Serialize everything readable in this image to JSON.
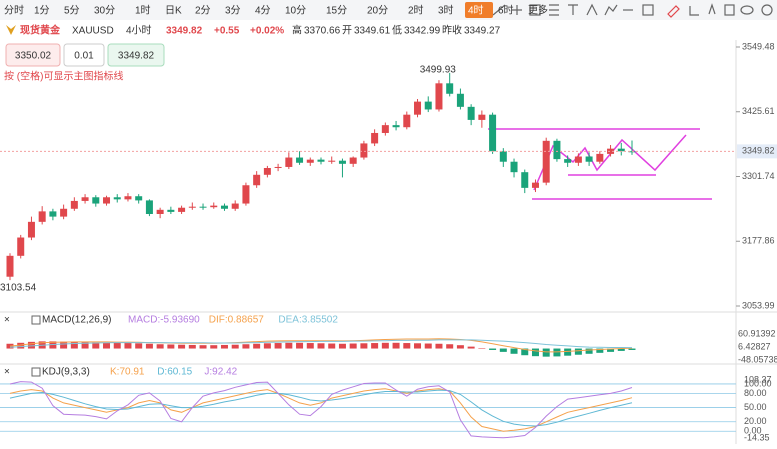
{
  "toolbar": {
    "timeframes": [
      "分时",
      "1分",
      "5分",
      "30分",
      "1时",
      "日K",
      "2分",
      "3分",
      "4分",
      "10分",
      "15分",
      "20分",
      "2时",
      "3时",
      "4时",
      "6时",
      "更多"
    ],
    "active": 14
  },
  "instrument": {
    "name": "现货黄金",
    "symbol": "XAUUSD",
    "interval": "4小时",
    "price": 3349.82,
    "change": "+0.55",
    "change_pct": "+0.02%",
    "stats": [
      {
        "label": "高",
        "value": 3370.66
      },
      {
        "label": "开",
        "value": 3349.61
      },
      {
        "label": "低",
        "value": 3342.99
      },
      {
        "label": "昨收",
        "value": 3349.27
      }
    ]
  },
  "order": {
    "sell": 3350.02,
    "lots": 0.01,
    "buy": 3349.82
  },
  "hint": "按 (空格)可显示主图指标线",
  "chart_data": [
    {
      "type": "candlestick",
      "up_color": "#e0474c",
      "down_color": "#1aa37a",
      "ylim": [
        3053.99,
        3549.48
      ],
      "yticks": [
        3549.48,
        3425.61,
        3301.74,
        3177.86,
        3053.99
      ],
      "candles": {
        "open": [
          3110,
          3150,
          3185,
          3215,
          3235,
          3225,
          3240,
          3255,
          3262,
          3250,
          3262,
          3258,
          3264,
          3256,
          3230,
          3238,
          3234,
          3242,
          3244,
          3243,
          3246,
          3240,
          3250,
          3285,
          3305,
          3318,
          3320,
          3338,
          3328,
          3334,
          3330,
          3332,
          3326,
          3338,
          3365,
          3385,
          3400,
          3396,
          3420,
          3445,
          3430,
          3480,
          3460,
          3435,
          3410,
          3420,
          3350,
          3330,
          3310,
          3280,
          3290,
          3370,
          3335,
          3328,
          3340,
          3330,
          3345,
          3355,
          3350
        ],
        "high": [
          3155,
          3190,
          3225,
          3245,
          3240,
          3248,
          3262,
          3268,
          3266,
          3265,
          3268,
          3270,
          3268,
          3258,
          3242,
          3244,
          3246,
          3252,
          3250,
          3252,
          3250,
          3256,
          3290,
          3312,
          3322,
          3326,
          3348,
          3350,
          3338,
          3338,
          3340,
          3336,
          3340,
          3370,
          3392,
          3405,
          3408,
          3426,
          3450,
          3455,
          3486,
          3499.93,
          3470,
          3440,
          3428,
          3424,
          3356,
          3336,
          3315,
          3296,
          3376,
          3374,
          3342,
          3346,
          3348,
          3350,
          3362,
          3366,
          3370.66
        ],
        "low": [
          3103.54,
          3145,
          3180,
          3210,
          3218,
          3220,
          3236,
          3250,
          3244,
          3246,
          3252,
          3254,
          3250,
          3226,
          3222,
          3230,
          3230,
          3238,
          3238,
          3240,
          3236,
          3236,
          3246,
          3280,
          3300,
          3312,
          3316,
          3324,
          3322,
          3325,
          3326,
          3300,
          3320,
          3334,
          3360,
          3380,
          3390,
          3392,
          3415,
          3425,
          3426,
          3455,
          3430,
          3400,
          3395,
          3345,
          3320,
          3300,
          3270,
          3272,
          3285,
          3330,
          3320,
          3322,
          3322,
          3326,
          3340,
          3342,
          3342.99
        ],
        "close": [
          3150,
          3185,
          3215,
          3235,
          3225,
          3240,
          3255,
          3262,
          3250,
          3262,
          3258,
          3264,
          3256,
          3230,
          3238,
          3234,
          3242,
          3244,
          3243,
          3246,
          3240,
          3250,
          3285,
          3305,
          3318,
          3320,
          3338,
          3328,
          3334,
          3330,
          3332,
          3326,
          3338,
          3365,
          3385,
          3400,
          3396,
          3420,
          3445,
          3430,
          3480,
          3460,
          3435,
          3410,
          3420,
          3350,
          3330,
          3310,
          3280,
          3290,
          3370,
          3335,
          3328,
          3340,
          3330,
          3345,
          3355,
          3350,
          3349.82
        ]
      }
    },
    {
      "type": "macd",
      "label": "MACD(12,26,9)",
      "readouts": [
        "MACD:-5.93690",
        "DIF:0.88657",
        "DEA:3.85502"
      ],
      "ylim": [
        -48.05738,
        60.91392
      ],
      "yticks": [
        60.91392,
        6.42827,
        -48.05738
      ],
      "up_color": "#e0474c",
      "down_color": "#1aa37a",
      "histogram": [
        20,
        24,
        28,
        30,
        30,
        29,
        28,
        27,
        26,
        25,
        24,
        23,
        22,
        20,
        18,
        17,
        16,
        15,
        14,
        14,
        15,
        16,
        18,
        20,
        22,
        23,
        24,
        24,
        23,
        22,
        21,
        20,
        21,
        22,
        23,
        24,
        24,
        23,
        22,
        21,
        20,
        18,
        14,
        8,
        2,
        -6,
        -14,
        -22,
        -28,
        -32,
        -34,
        -33,
        -30,
        -26,
        -22,
        -18,
        -14,
        -10,
        -5.9369
      ],
      "series": [
        {
          "name": "DIF",
          "color": "#f5a14b",
          "values": [
            10,
            15,
            20,
            24,
            26,
            27,
            28,
            28,
            28,
            28,
            27,
            27,
            26,
            25,
            24,
            23,
            22,
            22,
            22,
            22,
            23,
            25,
            27,
            29,
            31,
            32,
            33,
            33,
            33,
            33,
            33,
            32,
            33,
            34,
            36,
            38,
            39,
            40,
            40,
            40,
            41,
            40,
            38,
            34,
            28,
            20,
            12,
            4,
            -4,
            -10,
            -14,
            -14,
            -12,
            -9,
            -6,
            -4,
            -2,
            0,
            0.88657
          ]
        },
        {
          "name": "DEA",
          "color": "#7ec3d9",
          "values": [
            5,
            8,
            11,
            14,
            17,
            19,
            21,
            22,
            23,
            24,
            25,
            25,
            25,
            25,
            25,
            24,
            24,
            24,
            24,
            23,
            23,
            23,
            24,
            25,
            26,
            27,
            28,
            29,
            29,
            30,
            30,
            30,
            31,
            31,
            32,
            33,
            34,
            34,
            35,
            35,
            36,
            36,
            36,
            36,
            35,
            33,
            31,
            28,
            25,
            21,
            17,
            14,
            11,
            8,
            6,
            5,
            4.5,
            4.2,
            3.85502
          ]
        }
      ]
    },
    {
      "type": "kdj",
      "label": "KDJ(9,3,3)",
      "readouts": [
        "K:70.91",
        "D:60.15",
        "J:92.42"
      ],
      "ylim": [
        -14.35,
        108.37
      ],
      "yticks": [
        {
          "value": 108.37,
          "label": "108.37"
        },
        {
          "value": 100,
          "label": "100.00"
        },
        {
          "value": 80,
          "label": "80.00"
        },
        {
          "value": 50,
          "label": "50.00"
        },
        {
          "value": 20,
          "label": "20.00"
        },
        {
          "value": 0,
          "label": "0.00"
        },
        {
          "value": -14.35,
          "label": "-14.35"
        }
      ],
      "series": [
        {
          "name": "K",
          "color": "#f5a14b",
          "values": [
            80,
            85,
            88,
            85,
            70,
            60,
            55,
            50,
            45,
            40,
            45,
            50,
            60,
            65,
            60,
            45,
            40,
            50,
            60,
            65,
            70,
            75,
            80,
            85,
            88,
            80,
            70,
            60,
            55,
            60,
            70,
            75,
            80,
            85,
            88,
            90,
            85,
            80,
            85,
            88,
            90,
            85,
            60,
            30,
            10,
            5,
            0,
            2,
            5,
            10,
            20,
            30,
            40,
            45,
            50,
            55,
            60,
            65,
            70.91
          ]
        },
        {
          "name": "D",
          "color": "#5fb8d4",
          "values": [
            70,
            75,
            80,
            82,
            78,
            72,
            65,
            58,
            52,
            47,
            46,
            47,
            52,
            57,
            58,
            54,
            50,
            50,
            53,
            57,
            62,
            66,
            71,
            76,
            80,
            80,
            77,
            72,
            66,
            64,
            66,
            69,
            73,
            77,
            81,
            84,
            84,
            83,
            83,
            85,
            87,
            86,
            78,
            62,
            45,
            32,
            21,
            15,
            12,
            11,
            14,
            19,
            26,
            32,
            38,
            44,
            50,
            55,
            60.15
          ]
        },
        {
          "name": "J",
          "color": "#b57de0",
          "values": [
            100,
            105,
            104,
            91,
            54,
            36,
            35,
            34,
            31,
            26,
            43,
            56,
            76,
            81,
            64,
            27,
            20,
            50,
            74,
            81,
            86,
            93,
            98,
            103,
            104,
            80,
            56,
            36,
            33,
            52,
            78,
            87,
            94,
            101,
            102,
            102,
            87,
            74,
            89,
            94,
            96,
            83,
            24,
            -10,
            -12,
            -13,
            -14,
            -12,
            -9,
            8,
            32,
            52,
            68,
            71,
            74,
            77,
            80,
            85,
            92.42
          ]
        }
      ]
    }
  ]
}
